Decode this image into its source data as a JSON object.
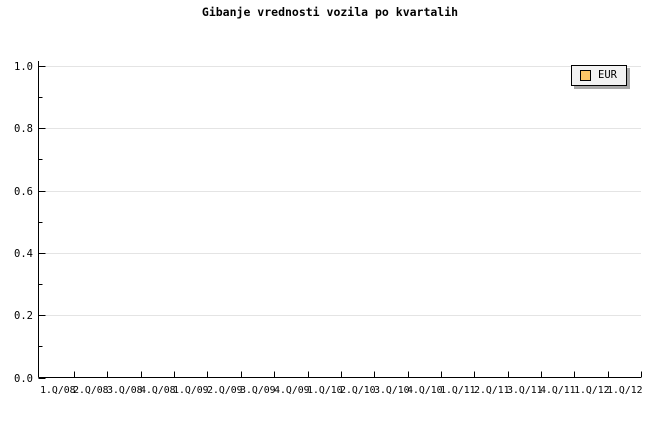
{
  "window": {
    "background_color": "#ffffff"
  },
  "chart_data": {
    "type": "line",
    "title": "Gibanje vrednosti vozila po kvartalih",
    "xlabel": "",
    "ylabel": "",
    "categories": [
      "1.Q/08",
      "2.Q/08",
      "3.Q/08",
      "4.Q/08",
      "1.Q/09",
      "2.Q/09",
      "3.Q/09",
      "4.Q/09",
      "1.Q/10",
      "2.Q/10",
      "3.Q/10",
      "4.Q/10",
      "1.Q/11",
      "2.Q/11",
      "3.Q/11",
      "4.Q/11",
      "1.Q/12",
      "1.Q/12"
    ],
    "series": [
      {
        "name": "EUR",
        "values": [],
        "color": "#fdc767"
      }
    ],
    "ylim": [
      0.0,
      1.0
    ],
    "y_major_ticks": [
      0.0,
      0.2,
      0.4,
      0.6,
      0.8,
      1.0
    ],
    "y_tick_labels": [
      "0.0",
      "0.2",
      "0.4",
      "0.6",
      "0.8",
      "1.0"
    ],
    "y_minor_tick_step": 0.1,
    "grid": "horizontal-major-only",
    "x_tick_style": "between-categories",
    "legend": {
      "position": "top-right",
      "entries": [
        {
          "label": "EUR",
          "swatch_color": "#fdc767"
        }
      ]
    },
    "colors": {
      "axis": "#000000",
      "gridline": "#e4e4e4",
      "tick": "#000000",
      "text": "#000000",
      "legend_background": "#f2f2f2",
      "legend_border": "#000000",
      "legend_shadow": "#a8a8a8",
      "swatch_border": "#000000"
    }
  }
}
